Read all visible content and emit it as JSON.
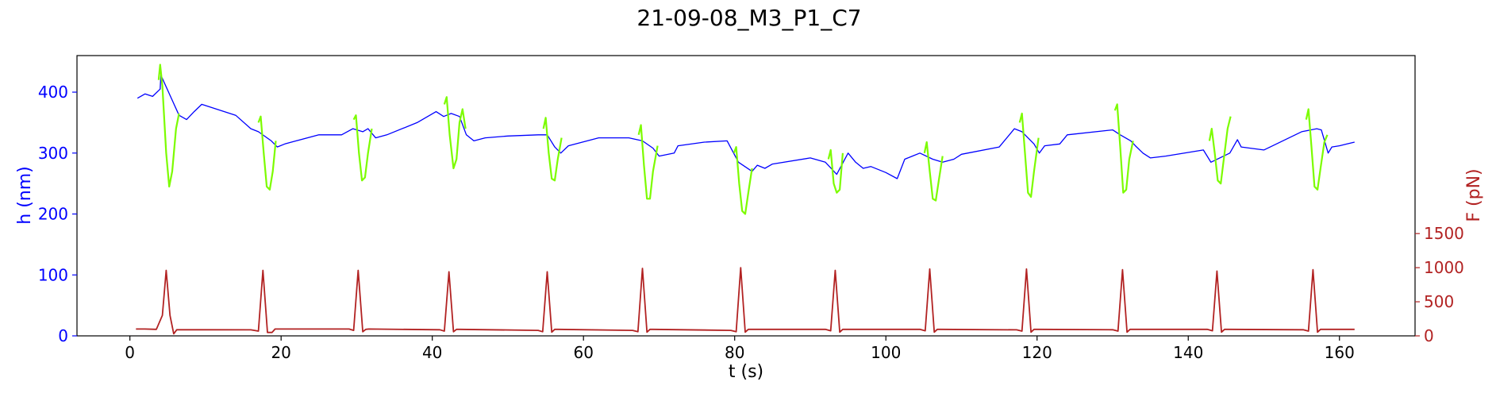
{
  "chart_data": {
    "type": "line",
    "title": "21-09-08_M3_P1_C7",
    "xlabel": "t (s)",
    "ylabel_left": "h (nm)",
    "ylabel_right": "F (pN)",
    "xlim": [
      -7,
      170
    ],
    "ylim_left": [
      0,
      460
    ],
    "ylim_right": [
      0,
      4110
    ],
    "x_ticks": [
      0,
      20,
      40,
      60,
      80,
      100,
      120,
      140,
      160
    ],
    "y_left_ticks": [
      0,
      100,
      200,
      300,
      400
    ],
    "y_right_ticks": [
      0,
      500,
      1000,
      1500
    ],
    "grid": false,
    "colors": {
      "height_rest": "#0000ff",
      "height_compression": "#7cfc00",
      "force": "#b22222",
      "left_axis": "#0000ff",
      "right_axis": "#b22222"
    },
    "series": [
      {
        "axis": "left",
        "color": "#0000ff",
        "x": [
          1,
          2,
          3,
          4,
          4.1,
          6.5,
          7.5,
          8.5,
          9.5,
          14,
          16,
          17,
          18.7,
          19.5,
          20.5,
          22,
          25,
          28,
          29.5,
          30.8,
          31.5,
          32.5,
          34,
          38,
          40.5,
          41.5,
          42.5,
          43.6,
          44.5,
          45.5,
          47,
          50,
          54,
          55.2,
          56.2,
          57,
          58,
          62,
          66,
          67.8,
          69.2,
          70,
          72,
          72.5,
          76,
          79,
          80.5,
          82.3,
          83,
          84,
          85,
          90,
          92,
          93.5,
          95,
          96,
          97,
          98,
          100,
          101.5,
          102.5,
          103.5,
          104.5,
          106.2,
          107.5,
          109,
          110,
          115,
          117,
          118,
          119.6,
          120.3,
          121,
          123,
          124,
          130,
          131,
          132.4,
          133,
          134,
          135,
          137,
          142,
          143,
          145.5,
          146.5,
          147,
          150,
          155,
          157,
          157.6,
          158.5,
          159,
          160,
          161,
          162
        ],
        "y": [
          390,
          397,
          393,
          405,
          428,
          362,
          355,
          368,
          380,
          362,
          340,
          335,
          320,
          310,
          315,
          320,
          330,
          330,
          340,
          335,
          340,
          325,
          330,
          350,
          368,
          360,
          365,
          360,
          330,
          320,
          325,
          328,
          330,
          330,
          310,
          300,
          312,
          325,
          325,
          320,
          308,
          295,
          300,
          312,
          318,
          320,
          285,
          270,
          280,
          275,
          282,
          292,
          285,
          265,
          300,
          285,
          275,
          278,
          268,
          258,
          290,
          295,
          300,
          290,
          285,
          290,
          298,
          310,
          340,
          335,
          315,
          300,
          312,
          315,
          330,
          338,
          330,
          320,
          312,
          300,
          292,
          295,
          305,
          285,
          300,
          322,
          310,
          305,
          335,
          340,
          338,
          300,
          310,
          312,
          315,
          318
        ]
      },
      {
        "axis": "left",
        "color": "#7cfc00",
        "segments": [
          {
            "x": [
              3.8,
              4.0,
              4.3,
              4.8,
              5.2,
              5.6,
              6.1,
              6.5
            ],
            "y": [
              420,
              445,
              410,
              300,
              245,
              270,
              340,
              365
            ]
          },
          {
            "x": [
              17.0,
              17.3,
              17.7,
              18.1,
              18.5,
              18.9,
              19.3
            ],
            "y": [
              350,
              360,
              300,
              245,
              240,
              270,
              320
            ]
          },
          {
            "x": [
              29.6,
              29.9,
              30.3,
              30.7,
              31.1,
              31.5,
              32.0
            ],
            "y": [
              355,
              362,
              300,
              255,
              260,
              300,
              340
            ]
          },
          {
            "x": [
              41.6,
              41.9,
              42.3,
              42.8,
              43.2,
              43.6,
              44.0,
              44.4
            ],
            "y": [
              380,
              392,
              330,
              275,
              290,
              350,
              372,
              340
            ]
          },
          {
            "x": [
              54.7,
              55.0,
              55.4,
              55.8,
              56.2,
              56.6,
              57.1
            ],
            "y": [
              340,
              358,
              300,
              258,
              255,
              290,
              325
            ]
          },
          {
            "x": [
              67.3,
              67.6,
              68.0,
              68.4,
              68.8,
              69.2,
              69.8
            ],
            "y": [
              330,
              346,
              280,
              225,
              225,
              270,
              312
            ]
          },
          {
            "x": [
              79.9,
              80.2,
              80.6,
              81.0,
              81.4,
              81.8,
              82.3
            ],
            "y": [
              300,
              310,
              250,
              205,
              200,
              235,
              275
            ]
          },
          {
            "x": [
              92.4,
              92.7,
              93.1,
              93.5,
              93.9,
              94.3
            ],
            "y": [
              290,
              305,
              250,
              235,
              240,
              300
            ]
          },
          {
            "x": [
              105.1,
              105.4,
              105.8,
              106.2,
              106.6,
              107.0,
              107.5
            ],
            "y": [
              300,
              318,
              270,
              225,
              222,
              255,
              295
            ]
          },
          {
            "x": [
              117.7,
              118.0,
              118.4,
              118.8,
              119.2,
              119.6,
              120.2
            ],
            "y": [
              350,
              365,
              300,
              235,
              228,
              270,
              325
            ]
          },
          {
            "x": [
              130.3,
              130.6,
              131.0,
              131.4,
              131.8,
              132.2,
              132.7
            ],
            "y": [
              370,
              380,
              310,
              235,
              240,
              290,
              320
            ]
          },
          {
            "x": [
              142.8,
              143.1,
              143.5,
              143.9,
              144.3,
              144.7,
              145.2,
              145.6
            ],
            "y": [
              320,
              340,
              300,
              255,
              250,
              290,
              340,
              360
            ]
          },
          {
            "x": [
              155.6,
              155.9,
              156.3,
              156.7,
              157.1,
              157.5,
              158.0,
              158.4
            ],
            "y": [
              355,
              372,
              310,
              245,
              240,
              275,
              318,
              330
            ]
          }
        ]
      },
      {
        "axis": "right",
        "color": "#b22222",
        "x": [
          0.8,
          2,
          3.5,
          4.3,
          4.8,
          5.3,
          5.8,
          6.2,
          6.7,
          16,
          17,
          17.6,
          18.2,
          18.8,
          19.2,
          19.6,
          29,
          29.6,
          30.2,
          30.8,
          31.2,
          31.6,
          41,
          41.6,
          42.2,
          42.8,
          43.2,
          43.6,
          54,
          54.6,
          55.2,
          55.8,
          56.2,
          56.6,
          66.5,
          67.2,
          67.8,
          68.4,
          68.8,
          69.2,
          79.5,
          80.2,
          80.8,
          81.4,
          81.8,
          82.2,
          92,
          92.7,
          93.3,
          93.9,
          94.3,
          94.7,
          104.5,
          105.2,
          105.8,
          106.4,
          106.8,
          107.2,
          117.3,
          118,
          118.6,
          119.2,
          119.6,
          120,
          130,
          130.7,
          131.3,
          131.9,
          132.3,
          132.7,
          142.5,
          143.2,
          143.8,
          144.4,
          144.8,
          145.2,
          155.2,
          155.9,
          156.5,
          157.1,
          157.5,
          157.9,
          162
        ],
        "y": [
          100,
          100,
          95,
          300,
          960,
          300,
          30,
          90,
          90,
          88,
          70,
          960,
          50,
          50,
          100,
          100,
          100,
          80,
          960,
          60,
          95,
          100,
          90,
          70,
          940,
          60,
          95,
          95,
          80,
          60,
          940,
          55,
          95,
          95,
          80,
          60,
          990,
          55,
          95,
          95,
          80,
          60,
          1000,
          55,
          95,
          95,
          95,
          75,
          960,
          55,
          95,
          95,
          95,
          75,
          980,
          55,
          95,
          95,
          88,
          70,
          980,
          55,
          95,
          95,
          90,
          70,
          970,
          55,
          95,
          95,
          95,
          75,
          950,
          55,
          95,
          95,
          90,
          70,
          970,
          55,
          95,
          95,
          95
        ]
      }
    ]
  }
}
